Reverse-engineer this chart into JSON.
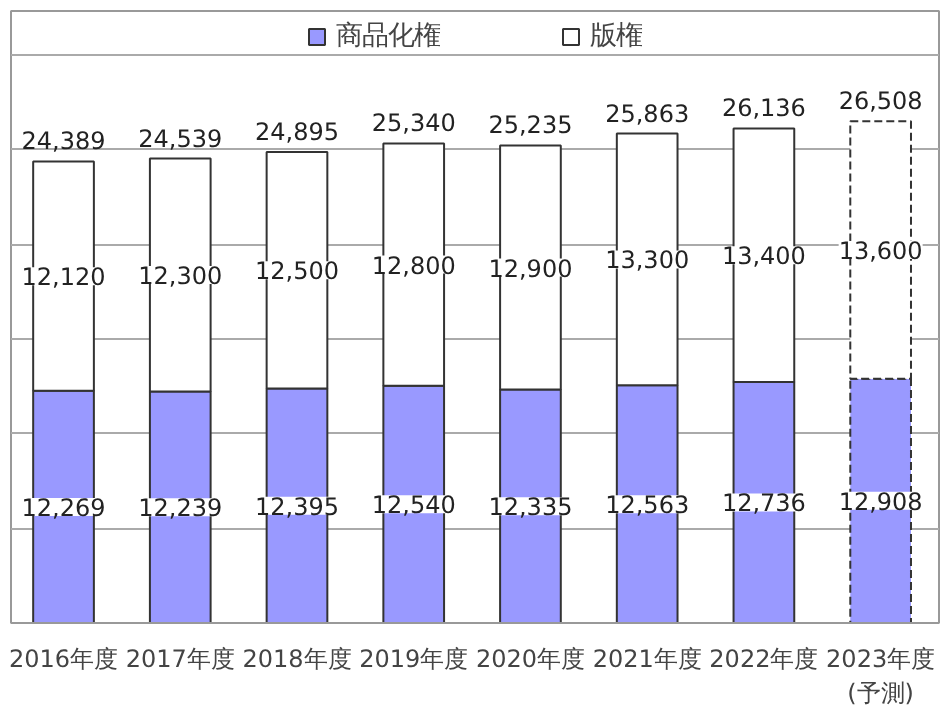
{
  "chart_data": {
    "type": "bar",
    "stacked": true,
    "categories": [
      "2016年度",
      "2017年度",
      "2018年度",
      "2019年度",
      "2020年度",
      "2021年度",
      "2022年度",
      "2023年度\n(予測)"
    ],
    "series": [
      {
        "name": "商品化権",
        "color": "#9999ff",
        "values": [
          12269,
          12239,
          12395,
          12540,
          12335,
          12563,
          12736,
          12908
        ],
        "value_labels": [
          "12,269",
          "12,239",
          "12,395",
          "12,540",
          "12,335",
          "12,563",
          "12,736",
          "12,908"
        ]
      },
      {
        "name": "版権",
        "color": "#ffffff",
        "values": [
          12120,
          12300,
          12500,
          12800,
          12900,
          13300,
          13400,
          13600
        ],
        "value_labels": [
          "12,120",
          "12,300",
          "12,500",
          "12,800",
          "12,900",
          "13,300",
          "13,400",
          "13,600"
        ]
      }
    ],
    "totals": [
      "24,389",
      "24,539",
      "24,895",
      "25,340",
      "25,235",
      "25,863",
      "26,136",
      "26,508"
    ],
    "line_style": [
      "solid",
      "solid",
      "solid",
      "solid",
      "solid",
      "solid",
      "solid",
      "dashed"
    ],
    "tick_labels": "x",
    "grid": "y",
    "legend": "top"
  }
}
